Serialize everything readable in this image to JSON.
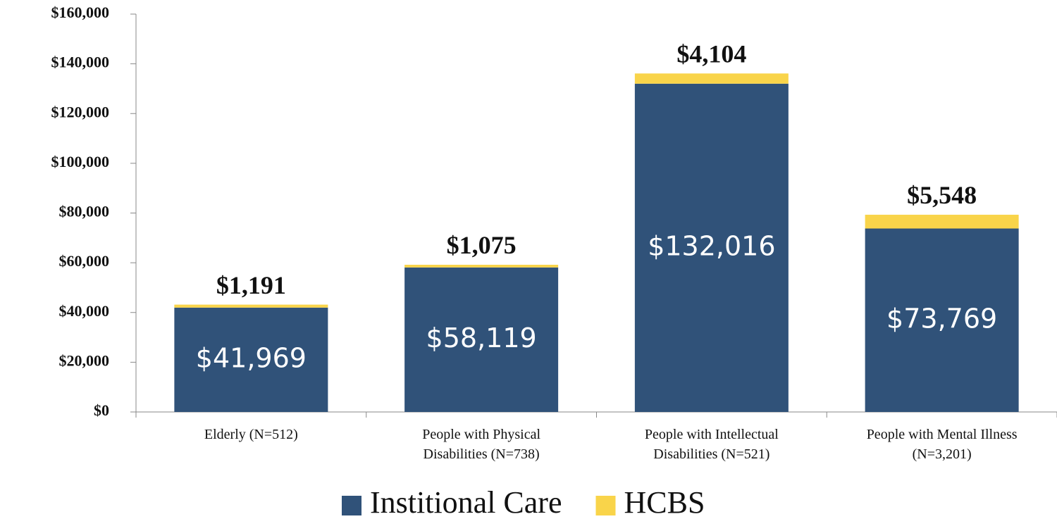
{
  "chart_data": {
    "type": "stacked_bar",
    "categories": [
      "Elderly (N=512)",
      "People with Physical\nDisabilities (N=738)",
      "People with Intellectual\nDisabilities (N=521)",
      "People with Mental Illness\n(N=3,201)"
    ],
    "series": [
      {
        "name": "Institional Care",
        "color": "#305279",
        "values": [
          41969,
          58119,
          132016,
          73769
        ],
        "value_labels": [
          "$41,969",
          "$58,119",
          "$132,016",
          "$73,769"
        ]
      },
      {
        "name": "HCBS",
        "color": "#f9d44a",
        "values": [
          1191,
          1075,
          4104,
          5548
        ],
        "value_labels": [
          "$1,191",
          "$1,075",
          "$4,104",
          "$5,548"
        ]
      }
    ],
    "ylim": [
      0,
      160000
    ],
    "yticks": [
      {
        "value": 0,
        "label": "$0"
      },
      {
        "value": 20000,
        "label": "$20,000"
      },
      {
        "value": 40000,
        "label": "$40,000"
      },
      {
        "value": 60000,
        "label": "$60,000"
      },
      {
        "value": 80000,
        "label": "$80,000"
      },
      {
        "value": 100000,
        "label": "$100,000"
      },
      {
        "value": 120000,
        "label": "$120,000"
      },
      {
        "value": 140000,
        "label": "$140,000"
      },
      {
        "value": 160000,
        "label": "$160,000"
      }
    ],
    "legend": "bottom"
  }
}
